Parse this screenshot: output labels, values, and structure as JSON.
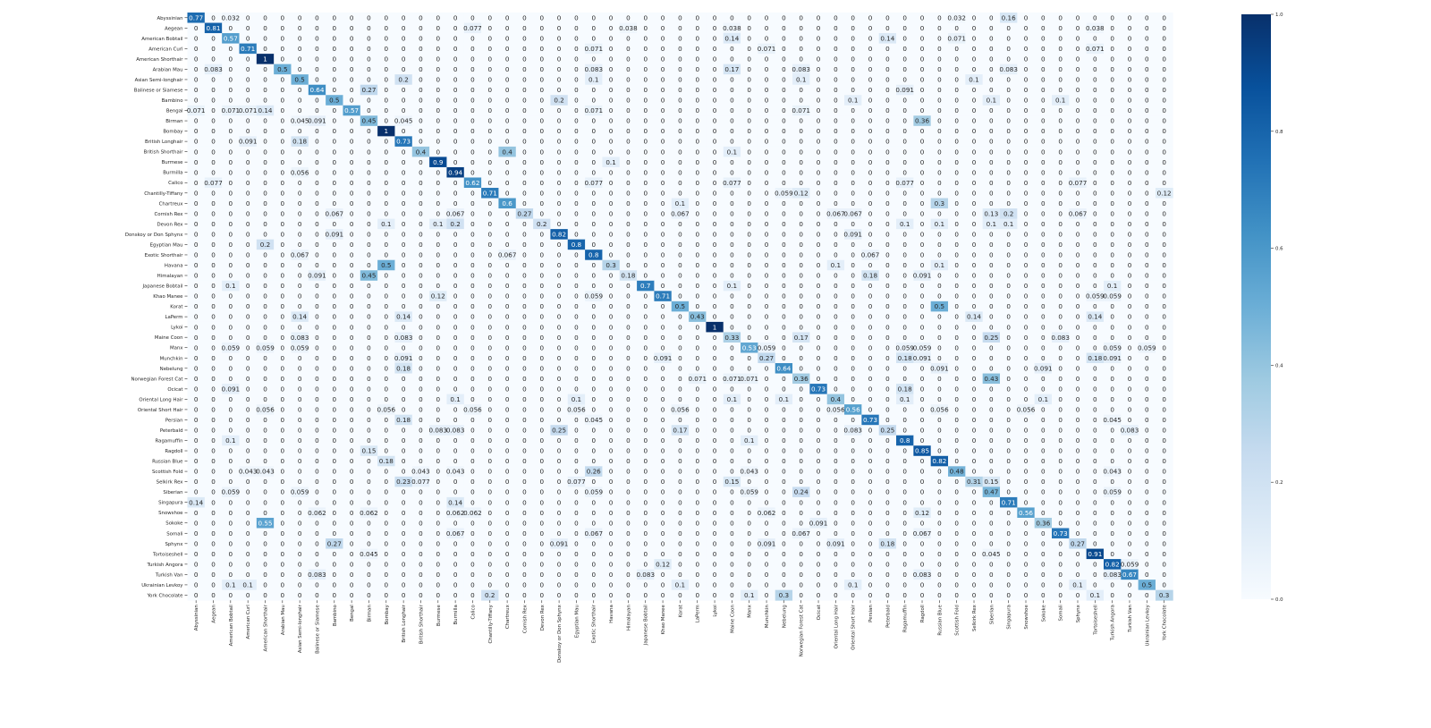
{
  "chart_data": {
    "type": "heatmap",
    "labels": [
      "Abyssinian",
      "Aegean",
      "American Bobtail",
      "American Curl",
      "American Shorthair",
      "Arabian Mau",
      "Asian Semi-longhair",
      "Balinese or Siamese",
      "Bambino",
      "Bengal",
      "Birman",
      "Bombay",
      "British Longhair",
      "British Shorthair",
      "Burmese",
      "Burmilla",
      "Calico",
      "Chantilly-Tiffany",
      "Chartreux",
      "Cornish Rex",
      "Devon Rex",
      "Donskoy or Don Sphynx",
      "Egyptian Mau",
      "Exotic Shorthair",
      "Havana",
      "Himalayan",
      "Japanese Bobtail",
      "Khao Manee",
      "Korat",
      "LaPerm",
      "Lykoi",
      "Maine Coon",
      "Manx",
      "Munchkin",
      "Nebelung",
      "Norwegian Forest Cat",
      "Ocicat",
      "Oriental Long Hair",
      "Oriental Short Hair",
      "Persian",
      "Peterbald",
      "Ragamuffin",
      "Ragdoll",
      "Russian Blue",
      "Scottish Fold",
      "Selkirk Rex",
      "Siberian",
      "Singapura",
      "Snowshoe",
      "Sokoke",
      "Somali",
      "Sphynx",
      "Tortoiseshell",
      "Turkish Angora",
      "Turkish Van",
      "Ukrainian Levkoy",
      "York Chocolate"
    ],
    "row_labels": [
      "Abyssinian",
      "Aegean",
      "American Bobtail",
      "American Curl",
      "American Shorthair",
      "Arabian Mau",
      "Asian Semi-longhair",
      "Balinese or Siamese",
      "Bambino",
      "Bengal",
      "Birman",
      "Bombay",
      "British Longhair",
      "British Shorthair",
      "Burmese",
      "Burmilla",
      "Calico",
      "Chantilly-Tiffany",
      "Chartreux",
      "Cornish Rex",
      "Devon Rex",
      "Donskoy or Don Sphynx",
      "Egyptian Mau",
      "Exotic Shorthair",
      "Havana",
      "Himalayan",
      "Japanese Bobtail",
      "Khao Manee",
      "Korat",
      "LaPerm",
      "Lykoi",
      "Maine Coon",
      "Manx",
      "Munchkin",
      "Nebelung",
      "Norwegian Forest Cat",
      "Ocicat",
      "Oriental Long Hair",
      "Oriental Short Hair",
      "Persian",
      "Peterbald",
      "Ragamuffin",
      "Ragdoll",
      "Russian Blue",
      "Scottish Fold",
      "Selkirk Rex",
      "Siberian",
      "Singapura",
      "Snowshoe",
      "Sokoke",
      "Somali",
      "Sphynx",
      "Tortoiseshell",
      "Turkish Angora",
      "Turkish Van",
      "Ukrainian Levkoy",
      "York Chocolate"
    ],
    "nonzero": [
      [
        0,
        0,
        0.77
      ],
      [
        0,
        2,
        0.032
      ],
      [
        0,
        44,
        0.032
      ],
      [
        0,
        47,
        0.16
      ],
      [
        1,
        1,
        0.81
      ],
      [
        1,
        16,
        0.077
      ],
      [
        1,
        25,
        0.038
      ],
      [
        1,
        31,
        0.038
      ],
      [
        1,
        52,
        0.038
      ],
      [
        2,
        2,
        0.57
      ],
      [
        2,
        31,
        0.14
      ],
      [
        2,
        40,
        0.14
      ],
      [
        2,
        44,
        0.071
      ],
      [
        3,
        3,
        0.71
      ],
      [
        3,
        23,
        0.071
      ],
      [
        3,
        33,
        0.071
      ],
      [
        3,
        52,
        0.071
      ],
      [
        4,
        4,
        1
      ],
      [
        5,
        1,
        0.083
      ],
      [
        5,
        5,
        0.5
      ],
      [
        5,
        23,
        0.083
      ],
      [
        5,
        31,
        0.17
      ],
      [
        5,
        35,
        0.083
      ],
      [
        5,
        47,
        0.083
      ],
      [
        6,
        6,
        0.5
      ],
      [
        6,
        12,
        0.2
      ],
      [
        6,
        23,
        0.1
      ],
      [
        6,
        35,
        0.1
      ],
      [
        6,
        45,
        0.1
      ],
      [
        7,
        7,
        0.64
      ],
      [
        7,
        10,
        0.27
      ],
      [
        7,
        41,
        0.091
      ],
      [
        8,
        8,
        0.5
      ],
      [
        8,
        21,
        0.2
      ],
      [
        8,
        38,
        0.1
      ],
      [
        8,
        46,
        0.1
      ],
      [
        8,
        50,
        0.1
      ],
      [
        9,
        0,
        0.071
      ],
      [
        9,
        2,
        0.071
      ],
      [
        9,
        3,
        0.071
      ],
      [
        9,
        4,
        0.14
      ],
      [
        9,
        9,
        0.57
      ],
      [
        9,
        23,
        0.071
      ],
      [
        9,
        35,
        0.071
      ],
      [
        10,
        6,
        0.045
      ],
      [
        10,
        7,
        0.091
      ],
      [
        10,
        10,
        0.45
      ],
      [
        10,
        12,
        0.045
      ],
      [
        10,
        42,
        0.36
      ],
      [
        11,
        11,
        1
      ],
      [
        12,
        3,
        0.091
      ],
      [
        12,
        6,
        0.18
      ],
      [
        12,
        12,
        0.73
      ],
      [
        13,
        13,
        0.4
      ],
      [
        13,
        18,
        0.4
      ],
      [
        13,
        31,
        0.1
      ],
      [
        14,
        14,
        0.9
      ],
      [
        14,
        24,
        0.1
      ],
      [
        15,
        6,
        0.056
      ],
      [
        15,
        15,
        0.94
      ],
      [
        16,
        1,
        0.077
      ],
      [
        16,
        16,
        0.62
      ],
      [
        16,
        23,
        0.077
      ],
      [
        16,
        31,
        0.077
      ],
      [
        16,
        41,
        0.077
      ],
      [
        16,
        51,
        0.077
      ],
      [
        17,
        17,
        0.71
      ],
      [
        17,
        34,
        0.059
      ],
      [
        17,
        35,
        0.12
      ],
      [
        17,
        56,
        0.12
      ],
      [
        18,
        18,
        0.6
      ],
      [
        18,
        28,
        0.1
      ],
      [
        18,
        43,
        0.3
      ],
      [
        19,
        8,
        0.067
      ],
      [
        19,
        15,
        0.067
      ],
      [
        19,
        19,
        0.27
      ],
      [
        19,
        28,
        0.067
      ],
      [
        19,
        37,
        0.067
      ],
      [
        19,
        38,
        0.067
      ],
      [
        19,
        46,
        0.13
      ],
      [
        19,
        47,
        0.2
      ],
      [
        19,
        51,
        0.067
      ],
      [
        20,
        11,
        0.1
      ],
      [
        20,
        14,
        0.1
      ],
      [
        20,
        15,
        0.2
      ],
      [
        20,
        20,
        0.2
      ],
      [
        20,
        41,
        0.1
      ],
      [
        20,
        43,
        0.1
      ],
      [
        20,
        46,
        0.1
      ],
      [
        20,
        47,
        0.1
      ],
      [
        21,
        8,
        0.091
      ],
      [
        21,
        21,
        0.82
      ],
      [
        21,
        38,
        0.091
      ],
      [
        22,
        4,
        0.2
      ],
      [
        22,
        22,
        0.8
      ],
      [
        23,
        6,
        0.067
      ],
      [
        23,
        18,
        0.067
      ],
      [
        23,
        23,
        0.8
      ],
      [
        23,
        39,
        0.067
      ],
      [
        24,
        11,
        0.5
      ],
      [
        24,
        24,
        0.3
      ],
      [
        24,
        37,
        0.1
      ],
      [
        24,
        43,
        0.1
      ],
      [
        25,
        7,
        0.091
      ],
      [
        25,
        10,
        0.45
      ],
      [
        25,
        25,
        0.18
      ],
      [
        25,
        39,
        0.18
      ],
      [
        25,
        42,
        0.091
      ],
      [
        26,
        2,
        0.1
      ],
      [
        26,
        26,
        0.7
      ],
      [
        26,
        31,
        0.1
      ],
      [
        26,
        53,
        0.1
      ],
      [
        27,
        14,
        0.12
      ],
      [
        27,
        23,
        0.059
      ],
      [
        27,
        27,
        0.71
      ],
      [
        27,
        52,
        0.059
      ],
      [
        27,
        53,
        0.059
      ],
      [
        28,
        28,
        0.5
      ],
      [
        28,
        43,
        0.5
      ],
      [
        29,
        6,
        0.14
      ],
      [
        29,
        12,
        0.14
      ],
      [
        29,
        29,
        0.43
      ],
      [
        29,
        45,
        0.14
      ],
      [
        29,
        52,
        0.14
      ],
      [
        30,
        30,
        1
      ],
      [
        31,
        6,
        0.083
      ],
      [
        31,
        12,
        0.083
      ],
      [
        31,
        31,
        0.33
      ],
      [
        31,
        35,
        0.17
      ],
      [
        31,
        46,
        0.25
      ],
      [
        31,
        50,
        0.083
      ],
      [
        32,
        2,
        0.059
      ],
      [
        32,
        4,
        0.059
      ],
      [
        32,
        6,
        0.059
      ],
      [
        32,
        32,
        0.53
      ],
      [
        32,
        33,
        0.059
      ],
      [
        32,
        41,
        0.059
      ],
      [
        32,
        42,
        0.059
      ],
      [
        32,
        53,
        0.059
      ],
      [
        32,
        55,
        0.059
      ],
      [
        33,
        12,
        0.091
      ],
      [
        33,
        27,
        0.091
      ],
      [
        33,
        33,
        0.27
      ],
      [
        33,
        41,
        0.18
      ],
      [
        33,
        42,
        0.091
      ],
      [
        33,
        52,
        0.18
      ],
      [
        33,
        53,
        0.091
      ],
      [
        34,
        12,
        0.18
      ],
      [
        34,
        34,
        0.64
      ],
      [
        34,
        43,
        0.091
      ],
      [
        34,
        49,
        0.091
      ],
      [
        35,
        29,
        0.071
      ],
      [
        35,
        31,
        0.071
      ],
      [
        35,
        32,
        0.071
      ],
      [
        35,
        35,
        0.36
      ],
      [
        35,
        46,
        0.43
      ],
      [
        36,
        2,
        0.091
      ],
      [
        36,
        36,
        0.73
      ],
      [
        36,
        41,
        0.18
      ],
      [
        37,
        15,
        0.1
      ],
      [
        37,
        22,
        0.1
      ],
      [
        37,
        31,
        0.1
      ],
      [
        37,
        34,
        0.1
      ],
      [
        37,
        37,
        0.4
      ],
      [
        37,
        41,
        0.1
      ],
      [
        37,
        49,
        0.1
      ],
      [
        38,
        4,
        0.056
      ],
      [
        38,
        11,
        0.056
      ],
      [
        38,
        16,
        0.056
      ],
      [
        38,
        22,
        0.056
      ],
      [
        38,
        28,
        0.056
      ],
      [
        38,
        37,
        0.056
      ],
      [
        38,
        38,
        0.56
      ],
      [
        38,
        43,
        0.056
      ],
      [
        38,
        48,
        0.056
      ],
      [
        39,
        12,
        0.18
      ],
      [
        39,
        23,
        0.045
      ],
      [
        39,
        39,
        0.73
      ],
      [
        39,
        53,
        0.045
      ],
      [
        40,
        14,
        0.083
      ],
      [
        40,
        15,
        0.083
      ],
      [
        40,
        21,
        0.25
      ],
      [
        40,
        28,
        0.17
      ],
      [
        40,
        38,
        0.083
      ],
      [
        40,
        40,
        0.25
      ],
      [
        40,
        54,
        0.083
      ],
      [
        41,
        2,
        0.1
      ],
      [
        41,
        32,
        0.1
      ],
      [
        41,
        41,
        0.8
      ],
      [
        42,
        10,
        0.15
      ],
      [
        42,
        42,
        0.85
      ],
      [
        43,
        11,
        0.18
      ],
      [
        43,
        43,
        0.82
      ],
      [
        44,
        3,
        0.043
      ],
      [
        44,
        4,
        0.043
      ],
      [
        44,
        13,
        0.043
      ],
      [
        44,
        15,
        0.043
      ],
      [
        44,
        23,
        0.26
      ],
      [
        44,
        32,
        0.043
      ],
      [
        44,
        44,
        0.48
      ],
      [
        44,
        53,
        0.043
      ],
      [
        45,
        12,
        0.23
      ],
      [
        45,
        13,
        0.077
      ],
      [
        45,
        22,
        0.077
      ],
      [
        45,
        31,
        0.15
      ],
      [
        45,
        45,
        0.31
      ],
      [
        45,
        46,
        0.15
      ],
      [
        46,
        2,
        0.059
      ],
      [
        46,
        6,
        0.059
      ],
      [
        46,
        23,
        0.059
      ],
      [
        46,
        32,
        0.059
      ],
      [
        46,
        35,
        0.24
      ],
      [
        46,
        46,
        0.47
      ],
      [
        46,
        53,
        0.059
      ],
      [
        47,
        0,
        0.14
      ],
      [
        47,
        15,
        0.14
      ],
      [
        47,
        47,
        0.71
      ],
      [
        48,
        7,
        0.062
      ],
      [
        48,
        10,
        0.062
      ],
      [
        48,
        15,
        0.062
      ],
      [
        48,
        16,
        0.062
      ],
      [
        48,
        33,
        0.062
      ],
      [
        48,
        42,
        0.12
      ],
      [
        48,
        48,
        0.56
      ],
      [
        49,
        4,
        0.55
      ],
      [
        49,
        36,
        0.091
      ],
      [
        49,
        49,
        0.36
      ],
      [
        50,
        15,
        0.067
      ],
      [
        50,
        23,
        0.067
      ],
      [
        50,
        35,
        0.067
      ],
      [
        50,
        42,
        0.067
      ],
      [
        50,
        50,
        0.73
      ],
      [
        51,
        8,
        0.27
      ],
      [
        51,
        21,
        0.091
      ],
      [
        51,
        33,
        0.091
      ],
      [
        51,
        37,
        0.091
      ],
      [
        51,
        40,
        0.18
      ],
      [
        51,
        51,
        0.27
      ],
      [
        52,
        10,
        0.045
      ],
      [
        52,
        46,
        0.045
      ],
      [
        52,
        52,
        0.91
      ],
      [
        53,
        27,
        0.12
      ],
      [
        53,
        53,
        0.82
      ],
      [
        53,
        54,
        0.059
      ],
      [
        54,
        7,
        0.083
      ],
      [
        54,
        26,
        0.083
      ],
      [
        54,
        42,
        0.083
      ],
      [
        54,
        53,
        0.083
      ],
      [
        54,
        54,
        0.67
      ],
      [
        55,
        2,
        0.1
      ],
      [
        55,
        3,
        0.1
      ],
      [
        55,
        28,
        0.1
      ],
      [
        55,
        38,
        0.1
      ],
      [
        55,
        51,
        0.1
      ],
      [
        55,
        55,
        0.5
      ],
      [
        56,
        17,
        0.2
      ],
      [
        56,
        32,
        0.1
      ],
      [
        56,
        34,
        0.3
      ],
      [
        56,
        52,
        0.1
      ],
      [
        56,
        56,
        0.3
      ]
    ],
    "colorbar": {
      "min": 0,
      "max": 1,
      "ticks": [
        "0.0",
        "0.2",
        "0.4",
        "0.6",
        "0.8",
        "1.0"
      ]
    },
    "colormap": [
      "#f7fbff",
      "#deebf7",
      "#c6dbef",
      "#9ecae1",
      "#6baed6",
      "#4292c6",
      "#2171b5",
      "#08519c",
      "#08306b"
    ]
  }
}
